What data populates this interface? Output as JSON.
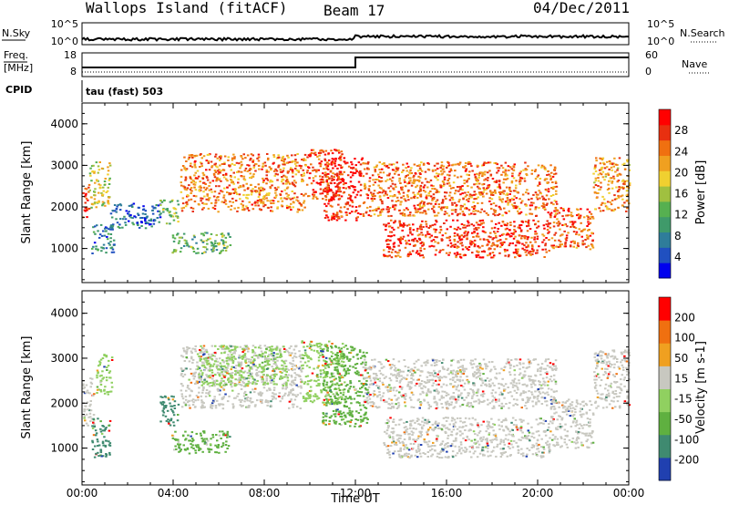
{
  "header": {
    "station": "Wallops Island (fitACF)",
    "beam": "Beam 17",
    "date": "04/Dec/2011"
  },
  "aux_panels": {
    "nsky_label": "N.Sky",
    "nsky_ticks": [
      "10^5",
      "10^0"
    ],
    "nsearch_label": "N.Search",
    "nsearch_ticks": [
      "10^5",
      "10^0"
    ],
    "freq_label_1": "Freq.",
    "freq_label_2": "[MHz]",
    "freq_ticks": [
      "18",
      "8"
    ],
    "nave_label": "Nave",
    "nave_ticks": [
      "60",
      "0"
    ],
    "cpid_label": "CPID",
    "cpid_value": "tau (fast) 503"
  },
  "chart_data": [
    {
      "type": "heatmap",
      "id": "power",
      "ylabel": "Slant Range [km]",
      "xlabel": "Time UT",
      "x_ticks": [
        "00:00",
        "04:00",
        "08:00",
        "12:00",
        "16:00",
        "20:00",
        "00:00"
      ],
      "xlim_hours": [
        0,
        24
      ],
      "y_ticks": [
        "1000",
        "2000",
        "3000",
        "4000"
      ],
      "ylim": [
        180,
        4500
      ],
      "colorbar": {
        "label": "Power [dB]",
        "ticks": [
          "28",
          "24",
          "20",
          "16",
          "12",
          "8",
          "4"
        ],
        "range": [
          0,
          32
        ],
        "colors": [
          "#0000ee",
          "#2050c0",
          "#2f7d9a",
          "#3f9a6a",
          "#56b050",
          "#a0c040",
          "#f0d030",
          "#f0a020",
          "#f07010",
          "#e83010",
          "#ff0000"
        ]
      },
      "regions": [
        {
          "t0": 0.0,
          "t1": 0.3,
          "r0": 1700,
          "r1": 2600,
          "level": 0.85
        },
        {
          "t0": 0.3,
          "t1": 1.2,
          "r0": 2000,
          "r1": 3100,
          "level": 0.55
        },
        {
          "t0": 0.4,
          "t1": 1.4,
          "r0": 900,
          "r1": 1600,
          "level": 0.25
        },
        {
          "t0": 1.2,
          "t1": 3.4,
          "r0": 1500,
          "r1": 2100,
          "level": 0.2
        },
        {
          "t0": 3.4,
          "t1": 4.2,
          "r0": 1600,
          "r1": 2200,
          "level": 0.45
        },
        {
          "t0": 3.9,
          "t1": 6.5,
          "r0": 900,
          "r1": 1400,
          "level": 0.4
        },
        {
          "t0": 4.3,
          "t1": 9.8,
          "r0": 1900,
          "r1": 3300,
          "level": 0.75
        },
        {
          "t0": 9.8,
          "t1": 11.4,
          "r0": 2200,
          "r1": 3400,
          "level": 0.85
        },
        {
          "t0": 10.6,
          "t1": 12.3,
          "r0": 1700,
          "r1": 3200,
          "level": 0.9
        },
        {
          "t0": 12.3,
          "t1": 20.8,
          "r0": 1800,
          "r1": 3100,
          "level": 0.78
        },
        {
          "t0": 13.2,
          "t1": 20.5,
          "r0": 800,
          "r1": 1700,
          "level": 0.88
        },
        {
          "t0": 20.5,
          "t1": 22.4,
          "r0": 1000,
          "r1": 2000,
          "level": 0.8
        },
        {
          "t0": 22.4,
          "t1": 24.0,
          "r0": 1900,
          "r1": 3200,
          "level": 0.7
        }
      ]
    },
    {
      "type": "heatmap",
      "id": "velocity",
      "ylabel": "Slant Range [km]",
      "xlabel": "Time UT",
      "x_ticks": [
        "00:00",
        "04:00",
        "08:00",
        "12:00",
        "16:00",
        "20:00",
        "00:00"
      ],
      "xlim_hours": [
        0,
        24
      ],
      "y_ticks": [
        "1000",
        "2000",
        "3000",
        "4000"
      ],
      "ylim": [
        180,
        4500
      ],
      "colorbar": {
        "label": "Velocity [m s-1]",
        "ticks": [
          "200",
          "100",
          "50",
          "15",
          "-15",
          "-50",
          "-100",
          "-200"
        ],
        "colors": [
          "#2040b0",
          "#3f8a70",
          "#5fb040",
          "#90d060",
          "#c8c8c0",
          "#f0a020",
          "#f07010",
          "#ff0000"
        ]
      },
      "regions": [
        {
          "t0": 0.0,
          "t1": 0.5,
          "r0": 1500,
          "r1": 2600,
          "color": "#c8c8c0"
        },
        {
          "t0": 0.4,
          "t1": 1.2,
          "r0": 800,
          "r1": 1700,
          "color": "#3f8a70"
        },
        {
          "t0": 0.6,
          "t1": 1.3,
          "r0": 2200,
          "r1": 3100,
          "color": "#90d060"
        },
        {
          "t0": 3.4,
          "t1": 4.2,
          "r0": 1500,
          "r1": 2200,
          "color": "#3f8a70"
        },
        {
          "t0": 3.9,
          "t1": 6.5,
          "r0": 900,
          "r1": 1400,
          "color": "#5fb040"
        },
        {
          "t0": 4.3,
          "t1": 9.6,
          "r0": 1900,
          "r1": 3300,
          "color": "#c8c8c0"
        },
        {
          "t0": 5.0,
          "t1": 9.0,
          "r0": 2400,
          "r1": 3300,
          "color": "#90d060"
        },
        {
          "t0": 9.6,
          "t1": 11.5,
          "r0": 2000,
          "r1": 3400,
          "color": "#90d060"
        },
        {
          "t0": 10.5,
          "t1": 12.5,
          "r0": 1500,
          "r1": 3300,
          "color": "#5fb040"
        },
        {
          "t0": 12.3,
          "t1": 20.8,
          "r0": 1900,
          "r1": 3000,
          "color": "#c8c8c0"
        },
        {
          "t0": 13.2,
          "t1": 20.5,
          "r0": 800,
          "r1": 1700,
          "color": "#c8c8c0"
        },
        {
          "t0": 20.5,
          "t1": 22.4,
          "r0": 1000,
          "r1": 2100,
          "color": "#c8c8c0"
        },
        {
          "t0": 22.4,
          "t1": 24.0,
          "r0": 1900,
          "r1": 3200,
          "color": "#c8c8c0"
        }
      ]
    }
  ]
}
